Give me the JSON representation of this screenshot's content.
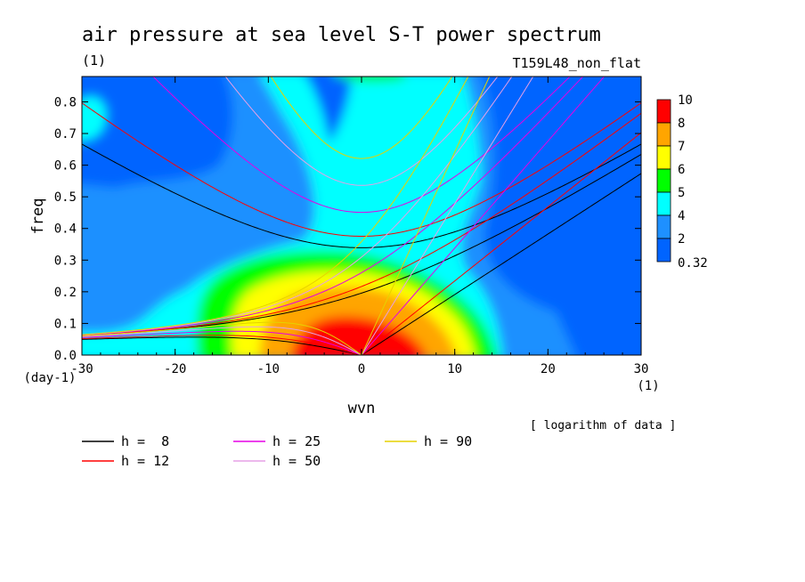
{
  "chart_data": {
    "type": "heatmap",
    "title": "air pressure at sea level S-T power spectrum",
    "subtitle_left": "(1)",
    "subtitle_right": "T159L48_non_flat",
    "xlabel": "wvn",
    "ylabel": "freq",
    "x_unit": "(1)",
    "y_unit": "(day-1)",
    "xlim": [
      -30,
      30
    ],
    "ylim": [
      0,
      0.88
    ],
    "xticks": [
      -30,
      -20,
      -10,
      0,
      10,
      20,
      30
    ],
    "yticks": [
      0.0,
      0.1,
      0.2,
      0.3,
      0.4,
      0.5,
      0.6,
      0.7,
      0.8
    ],
    "note": "[ logarithm of data ]",
    "colorbar": {
      "levels": [
        "10",
        "8",
        "7",
        "6",
        "5",
        "4",
        "2",
        "0.32"
      ],
      "colors": [
        "#ff0000",
        "#ffa500",
        "#ffff00",
        "#00ff00",
        "#00ffff",
        "#1e90ff",
        "#0064ff"
      ]
    },
    "contour_fill_colors": {
      "deep_blue": "#0064ff",
      "mid_blue": "#1e90ff",
      "cyan": "#00ffff",
      "green": "#00ff00",
      "yellow": "#ffff00",
      "orange": "#ffa500",
      "red": "#ff0000"
    },
    "dispersion_curves": [
      {
        "name": "h =  8",
        "h": 8,
        "color": "#000000"
      },
      {
        "name": "h = 12",
        "h": 12,
        "color": "#ff0000"
      },
      {
        "name": "h = 25",
        "h": 25,
        "color": "#e600e6"
      },
      {
        "name": "h = 50",
        "h": 50,
        "color": "#e6a0e6"
      },
      {
        "name": "h = 90",
        "h": 90,
        "color": "#e6d200"
      }
    ]
  }
}
